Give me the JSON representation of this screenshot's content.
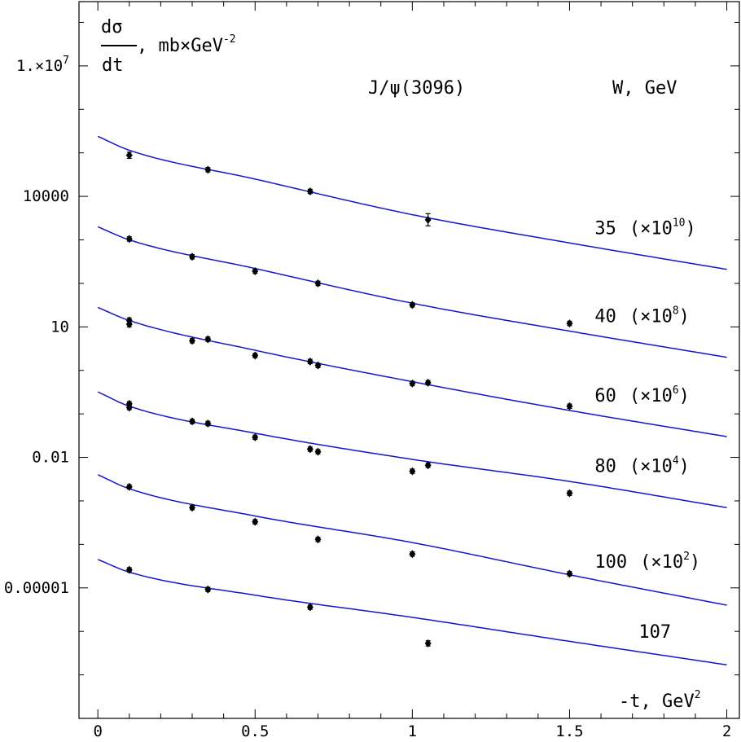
{
  "chart_data": {
    "type": "scatter",
    "title": "J/ψ(3096)",
    "legend_title": "W, GeV",
    "ylabel": {
      "numerator": "dσ",
      "denominator": "dt",
      "units_prefix": ", mb×GeV",
      "units_exp": "-2"
    },
    "xlabel": {
      "text": "-t, GeV",
      "exp": "2"
    },
    "xlim": [
      -0.06,
      2.04
    ],
    "ylim": [
      1e-08,
      300000000.0
    ],
    "y_scale": "log",
    "x_ticks": [
      {
        "v": 0,
        "label": "0"
      },
      {
        "v": 0.5,
        "label": "0.5"
      },
      {
        "v": 1,
        "label": "1"
      },
      {
        "v": 1.5,
        "label": "1.5"
      },
      {
        "v": 2,
        "label": "2"
      }
    ],
    "y_ticks": [
      {
        "v": 10000000.0,
        "mant": "1.×10",
        "exp": "7"
      },
      {
        "v": 10000,
        "mant": "10000",
        "exp": ""
      },
      {
        "v": 10,
        "mant": "10",
        "exp": ""
      },
      {
        "v": 0.01,
        "mant": "0.01",
        "exp": ""
      },
      {
        "v": 1e-05,
        "mant": "0.00001",
        "exp": ""
      }
    ],
    "series": [
      {
        "w": "35",
        "factor": "(×10",
        "factor_exp": "10",
        "label_x": 1.58,
        "curve": [
          {
            "t": 0,
            "y": 240000
          },
          {
            "t": 0.1,
            "y": 115000
          },
          {
            "t": 0.5,
            "y": 25000
          },
          {
            "t": 1,
            "y": 3800
          },
          {
            "t": 1.5,
            "y": 850
          },
          {
            "t": 2,
            "y": 210
          }
        ],
        "points": [
          {
            "t": 0.1,
            "y": 88000,
            "e": 0.07
          },
          {
            "t": 0.35,
            "y": 41000,
            "e": 0.05
          },
          {
            "t": 0.675,
            "y": 13000,
            "e": 0.05
          },
          {
            "t": 1.05,
            "y": 2900,
            "e": 0.14
          }
        ]
      },
      {
        "w": "40",
        "factor": "(×10",
        "factor_exp": "8",
        "label_x": 1.58,
        "curve": [
          {
            "t": 0,
            "y": 2000
          },
          {
            "t": 0.1,
            "y": 1000
          },
          {
            "t": 0.5,
            "y": 220
          },
          {
            "t": 1,
            "y": 35
          },
          {
            "t": 1.5,
            "y": 8
          },
          {
            "t": 2,
            "y": 2
          }
        ],
        "points": [
          {
            "t": 0.1,
            "y": 1050,
            "e": 0.05
          },
          {
            "t": 0.3,
            "y": 410,
            "e": 0.05
          },
          {
            "t": 0.5,
            "y": 190,
            "e": 0.05
          },
          {
            "t": 0.7,
            "y": 100,
            "e": 0.05
          },
          {
            "t": 1,
            "y": 32,
            "e": 0.05
          },
          {
            "t": 1.5,
            "y": 12,
            "e": 0.05
          }
        ]
      },
      {
        "w": "60",
        "factor": "(×10",
        "factor_exp": "6",
        "label_x": 1.58,
        "curve": [
          {
            "t": 0,
            "y": 28
          },
          {
            "t": 0.1,
            "y": 14
          },
          {
            "t": 0.5,
            "y": 2.9
          },
          {
            "t": 1,
            "y": 0.55
          },
          {
            "t": 1.5,
            "y": 0.12
          },
          {
            "t": 2,
            "y": 0.03
          }
        ],
        "points": [
          {
            "t": 0.1,
            "y": 14,
            "e": 0.06
          },
          {
            "t": 0.1,
            "y": 11.5,
            "e": 0.06
          },
          {
            "t": 0.3,
            "y": 4.8,
            "e": 0.05
          },
          {
            "t": 0.35,
            "y": 5.2,
            "e": 0.05
          },
          {
            "t": 0.5,
            "y": 2.2,
            "e": 0.05
          },
          {
            "t": 0.675,
            "y": 1.6,
            "e": 0.05
          },
          {
            "t": 0.7,
            "y": 1.3,
            "e": 0.05
          },
          {
            "t": 1,
            "y": 0.5,
            "e": 0.05
          },
          {
            "t": 1.05,
            "y": 0.52,
            "e": 0.05
          },
          {
            "t": 1.5,
            "y": 0.15,
            "e": 0.05
          }
        ]
      },
      {
        "w": "80",
        "factor": "(×10",
        "factor_exp": "4",
        "label_x": 1.58,
        "curve": [
          {
            "t": 0,
            "y": 0.32
          },
          {
            "t": 0.1,
            "y": 0.15
          },
          {
            "t": 0.5,
            "y": 0.036
          },
          {
            "t": 1,
            "y": 0.009
          },
          {
            "t": 1.5,
            "y": 0.0028
          },
          {
            "t": 2,
            "y": 0.0007
          }
        ],
        "points": [
          {
            "t": 0.1,
            "y": 0.17,
            "e": 0.05
          },
          {
            "t": 0.1,
            "y": 0.14,
            "e": 0.05
          },
          {
            "t": 0.3,
            "y": 0.067,
            "e": 0.05
          },
          {
            "t": 0.35,
            "y": 0.06,
            "e": 0.05
          },
          {
            "t": 0.5,
            "y": 0.029,
            "e": 0.05
          },
          {
            "t": 0.675,
            "y": 0.0155,
            "e": 0.05
          },
          {
            "t": 0.7,
            "y": 0.0135,
            "e": 0.05
          },
          {
            "t": 1,
            "y": 0.0048,
            "e": 0.05
          },
          {
            "t": 1.05,
            "y": 0.0066,
            "e": 0.05
          },
          {
            "t": 1.5,
            "y": 0.0015,
            "e": 0.05
          }
        ]
      },
      {
        "w": "100",
        "factor": "(×10",
        "factor_exp": "2",
        "label_x": 1.58,
        "curve": [
          {
            "t": 0,
            "y": 0.004
          },
          {
            "t": 0.1,
            "y": 0.0019
          },
          {
            "t": 0.5,
            "y": 0.00045
          },
          {
            "t": 1,
            "y": 0.00011
          },
          {
            "t": 1.5,
            "y": 2e-05
          },
          {
            "t": 2,
            "y": 4e-06
          }
        ],
        "points": [
          {
            "t": 0.1,
            "y": 0.0021,
            "e": 0.05
          },
          {
            "t": 0.3,
            "y": 0.0007,
            "e": 0.05
          },
          {
            "t": 0.5,
            "y": 0.00033,
            "e": 0.05
          },
          {
            "t": 0.7,
            "y": 0.00013,
            "e": 0.05
          },
          {
            "t": 1,
            "y": 6e-05,
            "e": 0.05
          },
          {
            "t": 1.5,
            "y": 2.12e-05,
            "e": 0.05
          }
        ]
      },
      {
        "w": "107",
        "factor": "",
        "factor_exp": "",
        "label_x": 1.72,
        "curve": [
          {
            "t": 0,
            "y": 4.5e-05
          },
          {
            "t": 0.1,
            "y": 2.3e-05
          },
          {
            "t": 0.5,
            "y": 6.8e-06
          },
          {
            "t": 1,
            "y": 2.1e-06
          },
          {
            "t": 1.5,
            "y": 5.9e-07
          },
          {
            "t": 2,
            "y": 1.7e-07
          }
        ],
        "points": [
          {
            "t": 0.1,
            "y": 2.6e-05,
            "e": 0.05
          },
          {
            "t": 0.35,
            "y": 9.2e-06,
            "e": 0.05
          },
          {
            "t": 0.675,
            "y": 3.6e-06,
            "e": 0.05
          },
          {
            "t": 1.05,
            "y": 5.3e-07,
            "e": 0.06
          }
        ]
      }
    ],
    "colors": {
      "curve": "#1515d0",
      "points": "#000000",
      "axis": "#000000"
    }
  }
}
